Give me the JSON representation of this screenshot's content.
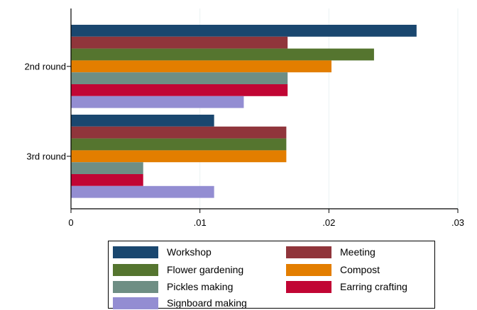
{
  "chart_data": {
    "type": "bar",
    "orientation": "horizontal",
    "categories": [
      "2nd round",
      "3rd round"
    ],
    "series": [
      {
        "name": "Workshop",
        "color": "#1a476f",
        "values": [
          0.0268,
          0.0111
        ]
      },
      {
        "name": "Meeting",
        "color": "#90353b",
        "values": [
          0.0168,
          0.0167
        ]
      },
      {
        "name": "Flower gardening",
        "color": "#55752f",
        "values": [
          0.0235,
          0.0167
        ]
      },
      {
        "name": "Compost",
        "color": "#e37e00",
        "values": [
          0.0202,
          0.0167
        ]
      },
      {
        "name": "Pickles making",
        "color": "#6e8e84",
        "values": [
          0.0168,
          0.0056
        ]
      },
      {
        "name": "Earring crafting",
        "color": "#c10534",
        "values": [
          0.0168,
          0.0056
        ]
      },
      {
        "name": "Signboard making",
        "color": "#938dd2",
        "values": [
          0.0134,
          0.0111
        ]
      }
    ],
    "xlim": [
      0,
      0.03
    ],
    "xticks": [
      {
        "value": 0,
        "label": "0"
      },
      {
        "value": 0.01,
        "label": ".01"
      },
      {
        "value": 0.02,
        "label": ".02"
      },
      {
        "value": 0.03,
        "label": ".03"
      }
    ],
    "grid": true,
    "legend_position": "bottom",
    "title": "",
    "xlabel": "",
    "ylabel": ""
  }
}
